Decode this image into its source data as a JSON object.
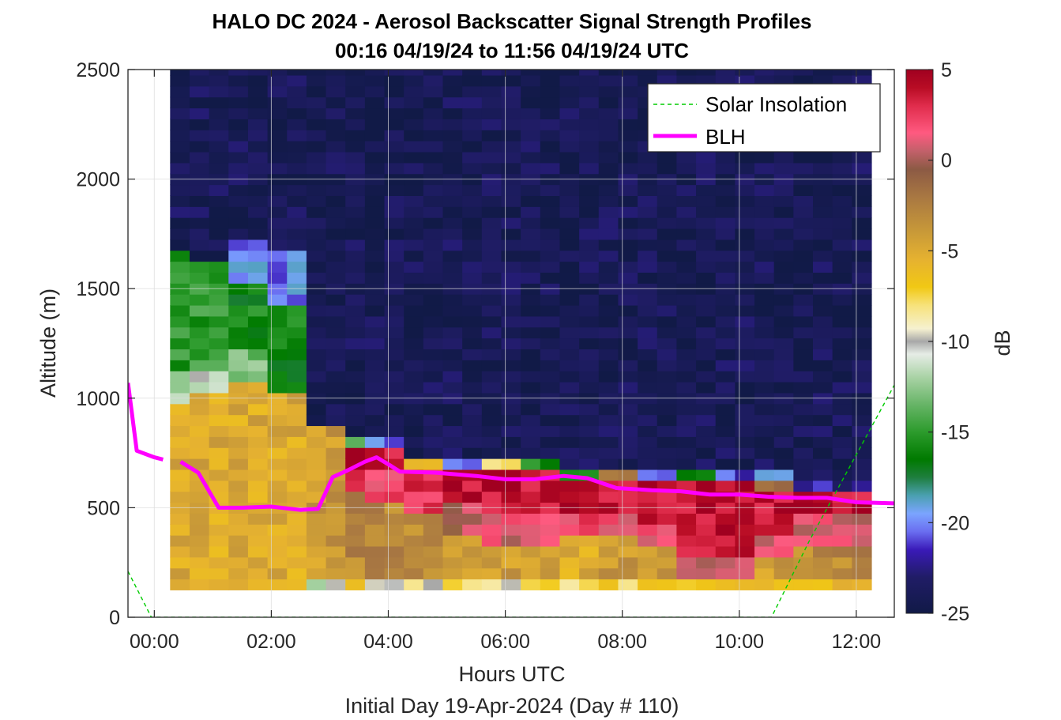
{
  "chart_data": {
    "type": "heatmap",
    "title": "HALO DC 2024 - Aerosol Backscatter Signal Strength Profiles",
    "subtitle": "00:16 04/19/24 to 11:56 04/19/24  UTC",
    "xlabel": "Hours UTC",
    "xlabel2": "Initial Day 19-Apr-2024 (Day # 110)",
    "ylabel": "Altitude (m)",
    "colorbar_label": "dB",
    "xlim": [
      -0.45,
      12.65
    ],
    "ylim": [
      0,
      2500
    ],
    "x_ticks": [
      0,
      2,
      4,
      6,
      8,
      10,
      12
    ],
    "x_tick_labels": [
      "00:00",
      "02:00",
      "04:00",
      "06:00",
      "08:00",
      "10:00",
      "12:00"
    ],
    "y_ticks": [
      0,
      500,
      1000,
      1500,
      2000,
      2500
    ],
    "y_tick_labels": [
      "0",
      "500",
      "1000",
      "1500",
      "2000",
      "2500"
    ],
    "clim": [
      -25,
      5
    ],
    "colorbar_ticks": [
      5,
      0,
      -5,
      -10,
      -15,
      -20,
      -25
    ],
    "colorbar_tick_labels": [
      "5",
      "0",
      "-5",
      "-10",
      "-15",
      "-20",
      "-25"
    ],
    "grid": true,
    "legend_position": "top-right",
    "legend": [
      "Solar Insolation",
      "BLH"
    ],
    "data_extent": {
      "x_start": 0.27,
      "x_end": 11.95,
      "y_start": 125,
      "y_end": 2500,
      "column_width_hours": 0.333,
      "row_height_m": 50
    },
    "column_profiles": [
      {
        "x": 0.43,
        "layers": [
          {
            "top": 170,
            "db": -6
          },
          {
            "top": 950,
            "db": -5
          },
          {
            "top": 1100,
            "db": -12
          },
          {
            "top": 1650,
            "db": -15
          },
          {
            "top": 2500,
            "db": -24
          }
        ]
      },
      {
        "x": 1.1,
        "layers": [
          {
            "top": 170,
            "db": -6
          },
          {
            "top": 1000,
            "db": -5
          },
          {
            "top": 1100,
            "db": -11
          },
          {
            "top": 1600,
            "db": -15
          },
          {
            "top": 2500,
            "db": -24
          }
        ]
      },
      {
        "x": 1.77,
        "layers": [
          {
            "top": 170,
            "db": -6
          },
          {
            "top": 1050,
            "db": -5
          },
          {
            "top": 1200,
            "db": -13
          },
          {
            "top": 1500,
            "db": -16
          },
          {
            "top": 1700,
            "db": -20
          },
          {
            "top": 2500,
            "db": -24
          }
        ]
      },
      {
        "x": 2.43,
        "layers": [
          {
            "top": 170,
            "db": -6
          },
          {
            "top": 1000,
            "db": -5
          },
          {
            "top": 1400,
            "db": -16
          },
          {
            "top": 1650,
            "db": -20
          },
          {
            "top": 2500,
            "db": -24
          }
        ]
      },
      {
        "x": 2.9,
        "layers": [
          {
            "top": 170,
            "db": -11
          },
          {
            "top": 850,
            "db": -4
          },
          {
            "top": 2500,
            "db": -24
          }
        ]
      },
      {
        "x": 3.4,
        "layers": [
          {
            "top": 170,
            "db": -7
          },
          {
            "top": 550,
            "db": -3
          },
          {
            "top": 750,
            "db": 4
          },
          {
            "top": 800,
            "db": -15
          },
          {
            "top": 2500,
            "db": -24
          }
        ]
      },
      {
        "x": 4.07,
        "layers": [
          {
            "top": 170,
            "db": -9
          },
          {
            "top": 530,
            "db": -3
          },
          {
            "top": 650,
            "db": 2
          },
          {
            "top": 750,
            "db": 4
          },
          {
            "top": 800,
            "db": -20
          },
          {
            "top": 2500,
            "db": -24
          }
        ]
      },
      {
        "x": 4.73,
        "layers": [
          {
            "top": 170,
            "db": -9
          },
          {
            "top": 450,
            "db": -3
          },
          {
            "top": 650,
            "db": 3
          },
          {
            "top": 700,
            "db": -7
          },
          {
            "top": 2500,
            "db": -24
          }
        ]
      },
      {
        "x": 5.4,
        "layers": [
          {
            "top": 170,
            "db": -8
          },
          {
            "top": 380,
            "db": -4
          },
          {
            "top": 500,
            "db": 0
          },
          {
            "top": 650,
            "db": 4
          },
          {
            "top": 700,
            "db": -21
          },
          {
            "top": 2500,
            "db": -24
          }
        ]
      },
      {
        "x": 6.07,
        "layers": [
          {
            "top": 170,
            "db": -9
          },
          {
            "top": 300,
            "db": -4
          },
          {
            "top": 450,
            "db": 1
          },
          {
            "top": 650,
            "db": 4
          },
          {
            "top": 700,
            "db": -9
          },
          {
            "top": 2500,
            "db": -24
          }
        ]
      },
      {
        "x": 6.73,
        "layers": [
          {
            "top": 170,
            "db": -8
          },
          {
            "top": 300,
            "db": -4
          },
          {
            "top": 450,
            "db": 1
          },
          {
            "top": 650,
            "db": 4
          },
          {
            "top": 700,
            "db": -16
          },
          {
            "top": 2500,
            "db": -24
          }
        ]
      },
      {
        "x": 7.4,
        "layers": [
          {
            "top": 170,
            "db": -8
          },
          {
            "top": 350,
            "db": -5
          },
          {
            "top": 450,
            "db": 2
          },
          {
            "top": 600,
            "db": 4
          },
          {
            "top": 650,
            "db": -16
          },
          {
            "top": 2500,
            "db": -24
          }
        ]
      },
      {
        "x": 8.07,
        "layers": [
          {
            "top": 170,
            "db": -7
          },
          {
            "top": 350,
            "db": -4
          },
          {
            "top": 450,
            "db": 2
          },
          {
            "top": 600,
            "db": 4
          },
          {
            "top": 650,
            "db": -1
          },
          {
            "top": 2500,
            "db": -24
          }
        ]
      },
      {
        "x": 8.73,
        "layers": [
          {
            "top": 170,
            "db": -6
          },
          {
            "top": 300,
            "db": -4
          },
          {
            "top": 400,
            "db": 2
          },
          {
            "top": 600,
            "db": 4
          },
          {
            "top": 650,
            "db": -21
          },
          {
            "top": 2500,
            "db": -24
          }
        ]
      },
      {
        "x": 9.4,
        "layers": [
          {
            "top": 170,
            "db": -7
          },
          {
            "top": 250,
            "db": 1
          },
          {
            "top": 600,
            "db": 4
          },
          {
            "top": 650,
            "db": -16
          },
          {
            "top": 2500,
            "db": -24
          }
        ]
      },
      {
        "x": 10.07,
        "layers": [
          {
            "top": 170,
            "db": -6
          },
          {
            "top": 250,
            "db": 1
          },
          {
            "top": 600,
            "db": 4
          },
          {
            "top": 650,
            "db": -21
          },
          {
            "top": 2500,
            "db": -24
          }
        ]
      },
      {
        "x": 10.73,
        "layers": [
          {
            "top": 170,
            "db": -6
          },
          {
            "top": 250,
            "db": -4
          },
          {
            "top": 350,
            "db": 1
          },
          {
            "top": 550,
            "db": 4
          },
          {
            "top": 600,
            "db": -2
          },
          {
            "top": 650,
            "db": -20
          },
          {
            "top": 2500,
            "db": -24
          }
        ]
      },
      {
        "x": 11.4,
        "layers": [
          {
            "top": 170,
            "db": -6
          },
          {
            "top": 300,
            "db": -3
          },
          {
            "top": 450,
            "db": 1
          },
          {
            "top": 550,
            "db": 4
          },
          {
            "top": 600,
            "db": -22
          },
          {
            "top": 2500,
            "db": -24
          }
        ]
      }
    ],
    "series": [
      {
        "name": "BLH",
        "color": "#ff00ff",
        "segments": [
          [
            [
              -0.45,
              1070
            ],
            [
              -0.3,
              760
            ],
            [
              0.0,
              730
            ],
            [
              0.15,
              720
            ]
          ],
          [
            [
              0.45,
              710
            ],
            [
              0.75,
              660
            ],
            [
              1.1,
              500
            ],
            [
              1.5,
              500
            ],
            [
              2.0,
              505
            ],
            [
              2.5,
              490
            ],
            [
              2.8,
              495
            ],
            [
              3.05,
              640
            ],
            [
              3.3,
              670
            ],
            [
              3.6,
              710
            ],
            [
              3.8,
              730
            ],
            [
              4.05,
              690
            ],
            [
              4.2,
              665
            ],
            [
              4.8,
              660
            ],
            [
              5.5,
              645
            ],
            [
              6.0,
              630
            ],
            [
              6.5,
              630
            ],
            [
              7.0,
              645
            ],
            [
              7.4,
              635
            ],
            [
              7.9,
              590
            ],
            [
              8.5,
              580
            ],
            [
              9.0,
              575
            ],
            [
              9.5,
              560
            ],
            [
              10.0,
              560
            ],
            [
              10.5,
              550
            ],
            [
              11.0,
              545
            ],
            [
              11.5,
              545
            ],
            [
              12.0,
              525
            ],
            [
              12.65,
              520
            ]
          ]
        ]
      },
      {
        "name": "Solar Insolation",
        "color": "#00cc00",
        "values": [
          [
            -0.45,
            210
          ],
          [
            -0.05,
            0
          ],
          [
            10.55,
            0
          ],
          [
            11.2,
            350
          ],
          [
            12.65,
            1060
          ]
        ]
      }
    ],
    "colormap_stops": [
      {
        "db": -25,
        "color": "#111a47"
      },
      {
        "db": -23,
        "color": "#201c66"
      },
      {
        "db": -21.5,
        "color": "#3a1ab8"
      },
      {
        "db": -20.5,
        "color": "#6a6df0"
      },
      {
        "db": -19.5,
        "color": "#7ba4ff"
      },
      {
        "db": -18.5,
        "color": "#4aa0b0"
      },
      {
        "db": -17.5,
        "color": "#1e7e3e"
      },
      {
        "db": -16.5,
        "color": "#007a00"
      },
      {
        "db": -15,
        "color": "#2c9b2c"
      },
      {
        "db": -13.5,
        "color": "#66b466"
      },
      {
        "db": -12,
        "color": "#a8d2a4"
      },
      {
        "db": -10.7,
        "color": "#e6ece6"
      },
      {
        "db": -10,
        "color": "#a8a8a8"
      },
      {
        "db": -9.3,
        "color": "#f6f1d0"
      },
      {
        "db": -8,
        "color": "#f7e27a"
      },
      {
        "db": -7,
        "color": "#f1c814"
      },
      {
        "db": -5.5,
        "color": "#e6b230"
      },
      {
        "db": -4,
        "color": "#c99a38"
      },
      {
        "db": -2,
        "color": "#a87742"
      },
      {
        "db": -0.5,
        "color": "#8c5a44"
      },
      {
        "db": 0.5,
        "color": "#c2606a"
      },
      {
        "db": 1.5,
        "color": "#ff5a80"
      },
      {
        "db": 3,
        "color": "#e02c4c"
      },
      {
        "db": 4,
        "color": "#b80c24"
      },
      {
        "db": 5,
        "color": "#a00020"
      }
    ]
  }
}
